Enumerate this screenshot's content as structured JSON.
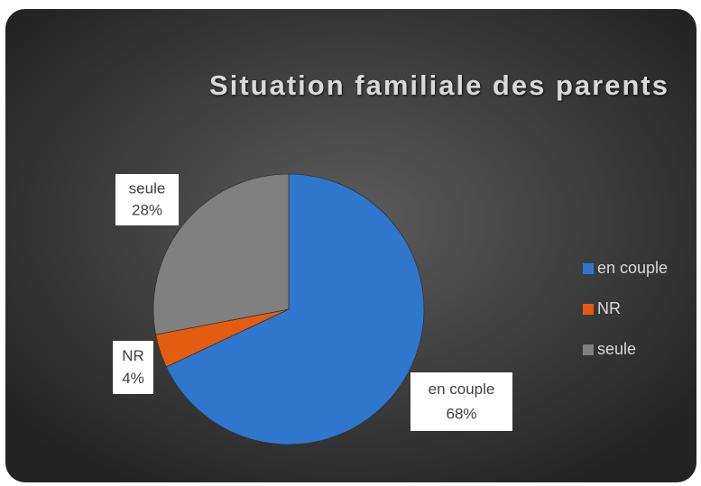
{
  "chart_data": {
    "type": "pie",
    "title": "Situation familiale des parents",
    "categories": [
      "en couple",
      "NR",
      "seule"
    ],
    "values": [
      68,
      4,
      28
    ],
    "value_labels": [
      "68%",
      "4%",
      "28%"
    ],
    "colors": [
      "#2f77cc",
      "#e55b10",
      "#808080"
    ],
    "legend": "right"
  }
}
